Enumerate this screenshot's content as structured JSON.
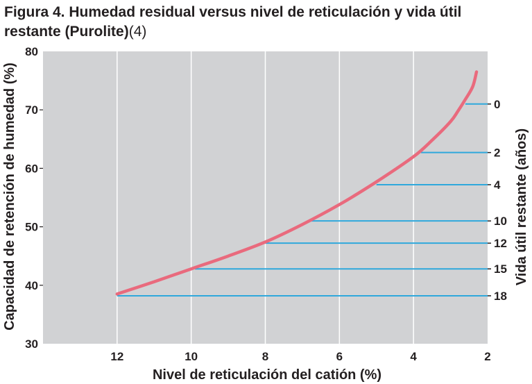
{
  "title": {
    "main": "Figura 4. Humedad residual versus nivel de reticulación y vida útil restante (Purolite)",
    "reference": "(4)"
  },
  "colors": {
    "plot_background": "#d1d2d4",
    "grid": "#ffffff",
    "curve": "#e96a7d",
    "life_lines": "#2fa8dc",
    "text": "#231f20"
  },
  "chart_data": {
    "type": "line",
    "title": "Figura 4. Humedad residual versus nivel de reticulación y vida útil restante (Purolite)(4)",
    "xlabel": "Nivel de reticulación del catión (%)",
    "ylabel": "Capacidad de retención de humedad (%)",
    "y2label": "Vida útil restante (años)",
    "xlim": [
      14,
      2
    ],
    "x_reversed": true,
    "ylim": [
      30,
      80
    ],
    "x_ticks": [
      12,
      10,
      8,
      6,
      4,
      2
    ],
    "y_ticks": [
      30,
      40,
      50,
      60,
      70,
      80
    ],
    "grid": "vertical",
    "series": [
      {
        "x": [
          12,
          11,
          10,
          9,
          8,
          7,
          6,
          5,
          4,
          3.5,
          3,
          2.8,
          2.6,
          2.4,
          2.3
        ],
        "y": [
          38.5,
          40.6,
          42.8,
          45.0,
          47.4,
          50.4,
          53.8,
          57.7,
          62.0,
          64.8,
          68.0,
          69.8,
          71.8,
          74.0,
          76.5
        ]
      }
    ],
    "remaining_life": [
      {
        "years": "0",
        "moisture": 71.0,
        "from_x": 2.6
      },
      {
        "years": "2",
        "moisture": 62.7,
        "from_x": 3.8
      },
      {
        "years": "4",
        "moisture": 57.2,
        "from_x": 5.0
      },
      {
        "years": "10",
        "moisture": 51.0,
        "from_x": 6.8
      },
      {
        "years": "12",
        "moisture": 47.2,
        "from_x": 8.0
      },
      {
        "years": "15",
        "moisture": 42.8,
        "from_x": 9.9
      },
      {
        "years": "18",
        "moisture": 38.2,
        "from_x": 12.0
      }
    ]
  }
}
